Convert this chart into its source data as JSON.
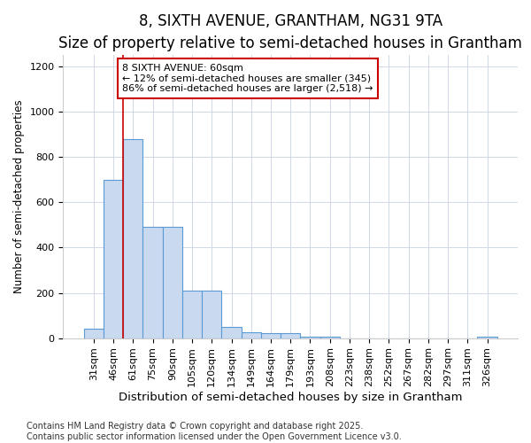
{
  "title": "8, SIXTH AVENUE, GRANTHAM, NG31 9TA",
  "subtitle": "Size of property relative to semi-detached houses in Grantham",
  "xlabel": "Distribution of semi-detached houses by size in Grantham",
  "ylabel": "Number of semi-detached properties",
  "categories": [
    "31sqm",
    "46sqm",
    "61sqm",
    "75sqm",
    "90sqm",
    "105sqm",
    "120sqm",
    "134sqm",
    "149sqm",
    "164sqm",
    "179sqm",
    "193sqm",
    "208sqm",
    "223sqm",
    "238sqm",
    "252sqm",
    "267sqm",
    "282sqm",
    "297sqm",
    "311sqm",
    "326sqm"
  ],
  "values": [
    40,
    700,
    880,
    490,
    490,
    210,
    210,
    50,
    25,
    20,
    20,
    5,
    5,
    0,
    0,
    0,
    0,
    0,
    0,
    0,
    5
  ],
  "bar_color": "#c9d9f0",
  "bar_edge_color": "#5b9bd5",
  "annotation_box_color": "#ffffff",
  "annotation_box_edge": "#cc0000",
  "red_line_color": "#cc0000",
  "marker_label": "8 SIXTH AVENUE: 60sqm",
  "marker_pct_smaller": "12%",
  "marker_count_smaller": 345,
  "marker_pct_larger": "86%",
  "marker_count_larger": 2518,
  "red_line_index": 2,
  "ylim": [
    0,
    1250
  ],
  "yticks": [
    0,
    200,
    400,
    600,
    800,
    1000,
    1200
  ],
  "title_fontsize": 12,
  "subtitle_fontsize": 10,
  "xlabel_fontsize": 9.5,
  "ylabel_fontsize": 8.5,
  "tick_fontsize": 8,
  "annot_fontsize": 8,
  "footnote_fontsize": 7,
  "footnote1": "Contains HM Land Registry data © Crown copyright and database right 2025.",
  "footnote2": "Contains public sector information licensed under the Open Government Licence v3.0."
}
